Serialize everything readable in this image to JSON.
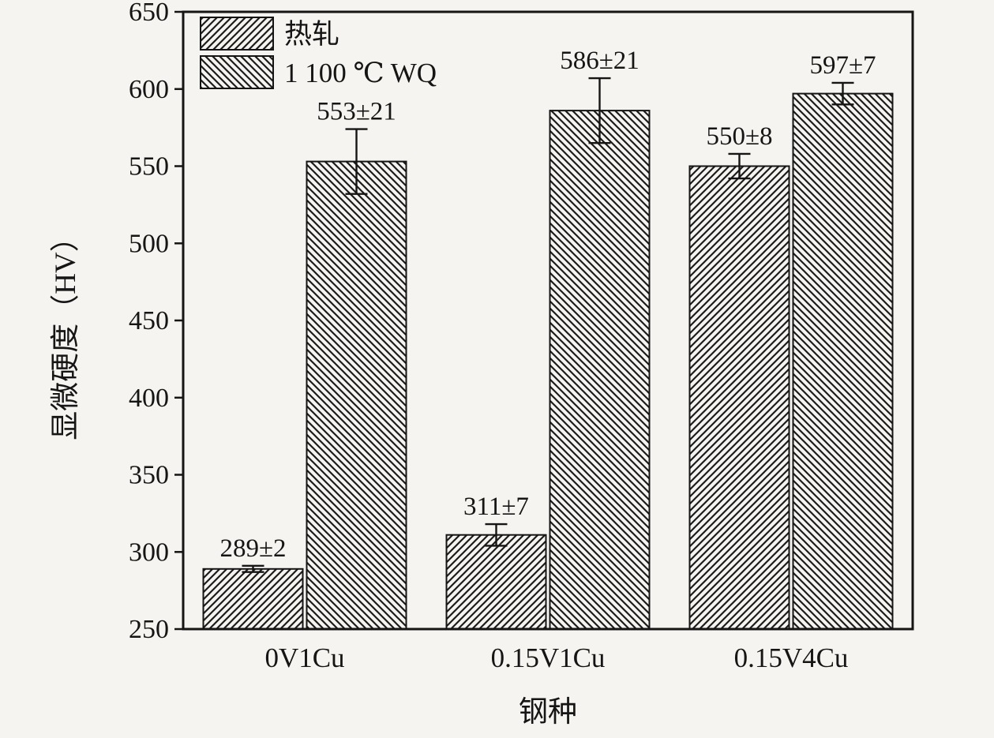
{
  "chart_data": {
    "type": "bar",
    "title": "",
    "xlabel": "钢种",
    "ylabel": "显微硬度（HV）",
    "categories": [
      "0V1Cu",
      "0.15V1Cu",
      "0.15V4Cu"
    ],
    "series": [
      {
        "name": "热轧",
        "hatch": "forward",
        "values": [
          289,
          311,
          550
        ],
        "errors": [
          2,
          7,
          8
        ],
        "labels": [
          "289±2",
          "311±7",
          "550±8"
        ]
      },
      {
        "name": "1 100 ℃ WQ",
        "hatch": "backward",
        "values": [
          553,
          586,
          597
        ],
        "errors": [
          21,
          21,
          7
        ],
        "labels": [
          "553±21",
          "586±21",
          "597±7"
        ]
      }
    ],
    "ylim": [
      250,
      650
    ],
    "ytick_step": 50,
    "yticks": [
      250,
      300,
      350,
      400,
      450,
      500,
      550,
      600,
      650
    ],
    "grid": false,
    "legend_position": "top-left-inside",
    "colors": {
      "background": "#f6f4f0",
      "bar_fill": "#f6f4f0",
      "hatch": "#1c1c1c",
      "axis": "#151515",
      "text": "#151515"
    }
  }
}
